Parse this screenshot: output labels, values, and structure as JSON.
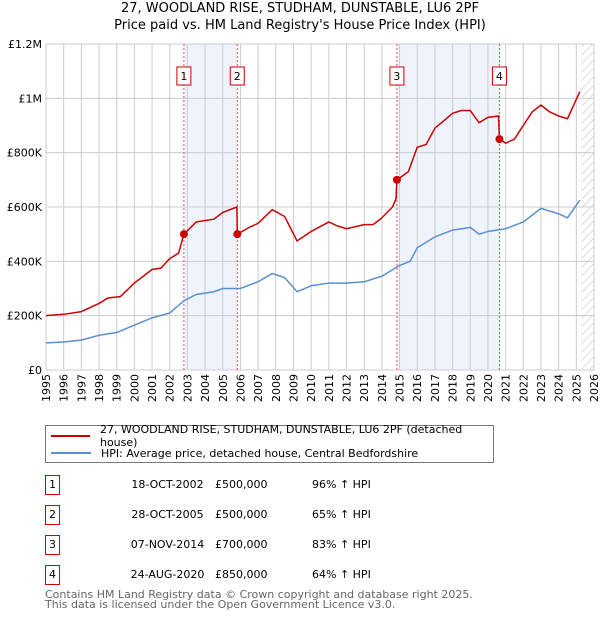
{
  "title": "27, WOODLAND RISE, STUDHAM, DUNSTABLE, LU6 2PF",
  "subtitle": "Price paid vs. HM Land Registry's House Price Index (HPI)",
  "chart_data": {
    "type": "line",
    "title": "27, WOODLAND RISE, STUDHAM, DUNSTABLE, LU6 2PF — Price paid vs. HM Land Registry's House Price Index (HPI)",
    "xlim": [
      1995,
      2026
    ],
    "ylim": [
      0,
      1200000
    ],
    "x_ticks": [
      "1995",
      "1996",
      "1997",
      "1998",
      "1999",
      "2000",
      "2001",
      "2002",
      "2003",
      "2004",
      "2005",
      "2006",
      "2007",
      "2008",
      "2009",
      "2010",
      "2011",
      "2012",
      "2013",
      "2014",
      "2015",
      "2016",
      "2017",
      "2018",
      "2019",
      "2020",
      "2021",
      "2022",
      "2023",
      "2024",
      "2025",
      "2026"
    ],
    "y_ticks": [
      {
        "v": 0,
        "label": "£0"
      },
      {
        "v": 200000,
        "label": "£200K"
      },
      {
        "v": 400000,
        "label": "£400K"
      },
      {
        "v": 600000,
        "label": "£600K"
      },
      {
        "v": 800000,
        "label": "£800K"
      },
      {
        "v": 1000000,
        "label": "£1M"
      },
      {
        "v": 1200000,
        "label": "£1.2M"
      }
    ],
    "grid": true,
    "forecast_hatch_from": 2025.3,
    "series": [
      {
        "name": "27, WOODLAND RISE, STUDHAM, DUNSTABLE, LU6 2PF (detached house)",
        "color": "#cc0000",
        "points": [
          [
            1995,
            200000
          ],
          [
            1996,
            205000
          ],
          [
            1997,
            215000
          ],
          [
            1998,
            245000
          ],
          [
            1998.5,
            265000
          ],
          [
            1999.2,
            270000
          ],
          [
            2000,
            320000
          ],
          [
            2001,
            370000
          ],
          [
            2001.5,
            375000
          ],
          [
            2002,
            410000
          ],
          [
            2002.5,
            430000
          ],
          [
            2002.8,
            500000
          ],
          [
            2003.5,
            545000
          ],
          [
            2004.5,
            555000
          ],
          [
            2005,
            580000
          ],
          [
            2005.8,
            600000
          ],
          [
            2005.82,
            500000
          ],
          [
            2006.5,
            525000
          ],
          [
            2007,
            540000
          ],
          [
            2007.8,
            590000
          ],
          [
            2008.5,
            565000
          ],
          [
            2009.2,
            475000
          ],
          [
            2010,
            510000
          ],
          [
            2011,
            545000
          ],
          [
            2011.5,
            530000
          ],
          [
            2012,
            520000
          ],
          [
            2013,
            535000
          ],
          [
            2013.5,
            535000
          ],
          [
            2014,
            560000
          ],
          [
            2014.6,
            600000
          ],
          [
            2014.8,
            630000
          ],
          [
            2014.85,
            700000
          ],
          [
            2015.5,
            730000
          ],
          [
            2016,
            820000
          ],
          [
            2016.5,
            830000
          ],
          [
            2017,
            890000
          ],
          [
            2018,
            945000
          ],
          [
            2018.5,
            955000
          ],
          [
            2019,
            955000
          ],
          [
            2019.5,
            910000
          ],
          [
            2020,
            930000
          ],
          [
            2020.6,
            935000
          ],
          [
            2020.65,
            850000
          ],
          [
            2021,
            835000
          ],
          [
            2021.5,
            850000
          ],
          [
            2022,
            900000
          ],
          [
            2022.5,
            950000
          ],
          [
            2023,
            975000
          ],
          [
            2023.5,
            950000
          ],
          [
            2024,
            935000
          ],
          [
            2024.5,
            925000
          ],
          [
            2025.2,
            1025000
          ]
        ]
      },
      {
        "name": "HPI: Average price, detached house, Central Bedfordshire",
        "color": "#5b8fd4",
        "points": [
          [
            1995,
            100000
          ],
          [
            1996,
            103000
          ],
          [
            1997,
            110000
          ],
          [
            1998,
            128000
          ],
          [
            1999,
            138000
          ],
          [
            2000,
            165000
          ],
          [
            2001,
            192000
          ],
          [
            2002,
            210000
          ],
          [
            2002.8,
            255000
          ],
          [
            2003.5,
            278000
          ],
          [
            2004.5,
            288000
          ],
          [
            2005,
            300000
          ],
          [
            2006,
            300000
          ],
          [
            2007,
            325000
          ],
          [
            2007.8,
            355000
          ],
          [
            2008.5,
            340000
          ],
          [
            2009.2,
            288000
          ],
          [
            2010,
            310000
          ],
          [
            2011,
            320000
          ],
          [
            2012,
            320000
          ],
          [
            2013,
            325000
          ],
          [
            2014,
            345000
          ],
          [
            2015,
            385000
          ],
          [
            2015.6,
            400000
          ],
          [
            2016,
            450000
          ],
          [
            2017,
            490000
          ],
          [
            2018,
            515000
          ],
          [
            2019,
            525000
          ],
          [
            2019.5,
            500000
          ],
          [
            2020,
            510000
          ],
          [
            2021,
            520000
          ],
          [
            2022,
            545000
          ],
          [
            2023,
            595000
          ],
          [
            2024,
            575000
          ],
          [
            2024.5,
            560000
          ],
          [
            2025.2,
            625000
          ]
        ]
      }
    ],
    "sales": [
      {
        "n": "1",
        "x": 2002.8,
        "price": 500000,
        "date": "18-OCT-2002",
        "price_label": "£500,000",
        "hpi": "96% ↑ HPI"
      },
      {
        "n": "2",
        "x": 2005.82,
        "price": 500000,
        "date": "28-OCT-2005",
        "price_label": "£500,000",
        "hpi": "65% ↑ HPI"
      },
      {
        "n": "3",
        "x": 2014.85,
        "price": 700000,
        "date": "07-NOV-2014",
        "price_label": "£700,000",
        "hpi": "83% ↑ HPI"
      },
      {
        "n": "4",
        "x": 2020.65,
        "price": 850000,
        "date": "24-AUG-2020",
        "price_label": "£850,000",
        "hpi": "64% ↑ HPI"
      }
    ],
    "shaded_spans": [
      [
        2002.8,
        2005.82
      ],
      [
        2014.85,
        2020.65
      ]
    ]
  },
  "legend": {
    "red": "27, WOODLAND RISE, STUDHAM, DUNSTABLE, LU6 2PF (detached house)",
    "blue": "HPI: Average price, detached house, Central Bedfordshire"
  },
  "footer": {
    "line1": "Contains HM Land Registry data © Crown copyright and database right 2025.",
    "line2": "This data is licensed under the Open Government Licence v3.0."
  }
}
